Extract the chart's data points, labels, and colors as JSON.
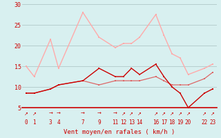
{
  "x_positions": [
    0,
    1,
    3,
    4,
    7,
    9,
    11,
    12,
    13,
    14,
    16,
    17,
    18,
    19,
    20,
    22,
    23
  ],
  "x_labels": [
    "0",
    "1",
    "3",
    "4",
    "7",
    "9",
    "11",
    "12",
    "13",
    "14",
    "16",
    "17",
    "18",
    "19",
    "20",
    "22",
    "23"
  ],
  "line_dark": [
    8.5,
    8.5,
    9.5,
    10.5,
    11.5,
    14.5,
    12.5,
    12.5,
    14.5,
    13.0,
    15.5,
    12.5,
    10.0,
    8.5,
    5.0,
    8.5,
    9.5
  ],
  "line_mid": [
    8.5,
    8.5,
    9.5,
    10.5,
    11.5,
    10.5,
    11.5,
    11.5,
    11.5,
    11.5,
    12.5,
    11.5,
    10.5,
    10.5,
    10.5,
    12.0,
    13.5
  ],
  "line_light": [
    15.0,
    12.5,
    21.5,
    14.5,
    28.0,
    22.0,
    19.5,
    20.5,
    20.5,
    22.0,
    27.5,
    22.5,
    18.0,
    17.0,
    13.0,
    14.5,
    15.5
  ],
  "xlabel": "Vent moyen/en rafales ( km/h )",
  "ylim": [
    5,
    30
  ],
  "yticks": [
    5,
    10,
    15,
    20,
    25,
    30
  ],
  "color_dark": "#cc0000",
  "color_mid": "#dd6666",
  "color_light": "#ffaaaa",
  "bg_color": "#d8f0f0",
  "grid_color": "#b0c8c8",
  "arrow_symbols": [
    "↗",
    "↗",
    "→",
    "→",
    "→",
    "→",
    "→",
    "↗",
    "↗",
    "↗",
    "↗",
    "↗",
    "↗",
    "↗",
    "↗",
    "↗",
    "↗"
  ]
}
